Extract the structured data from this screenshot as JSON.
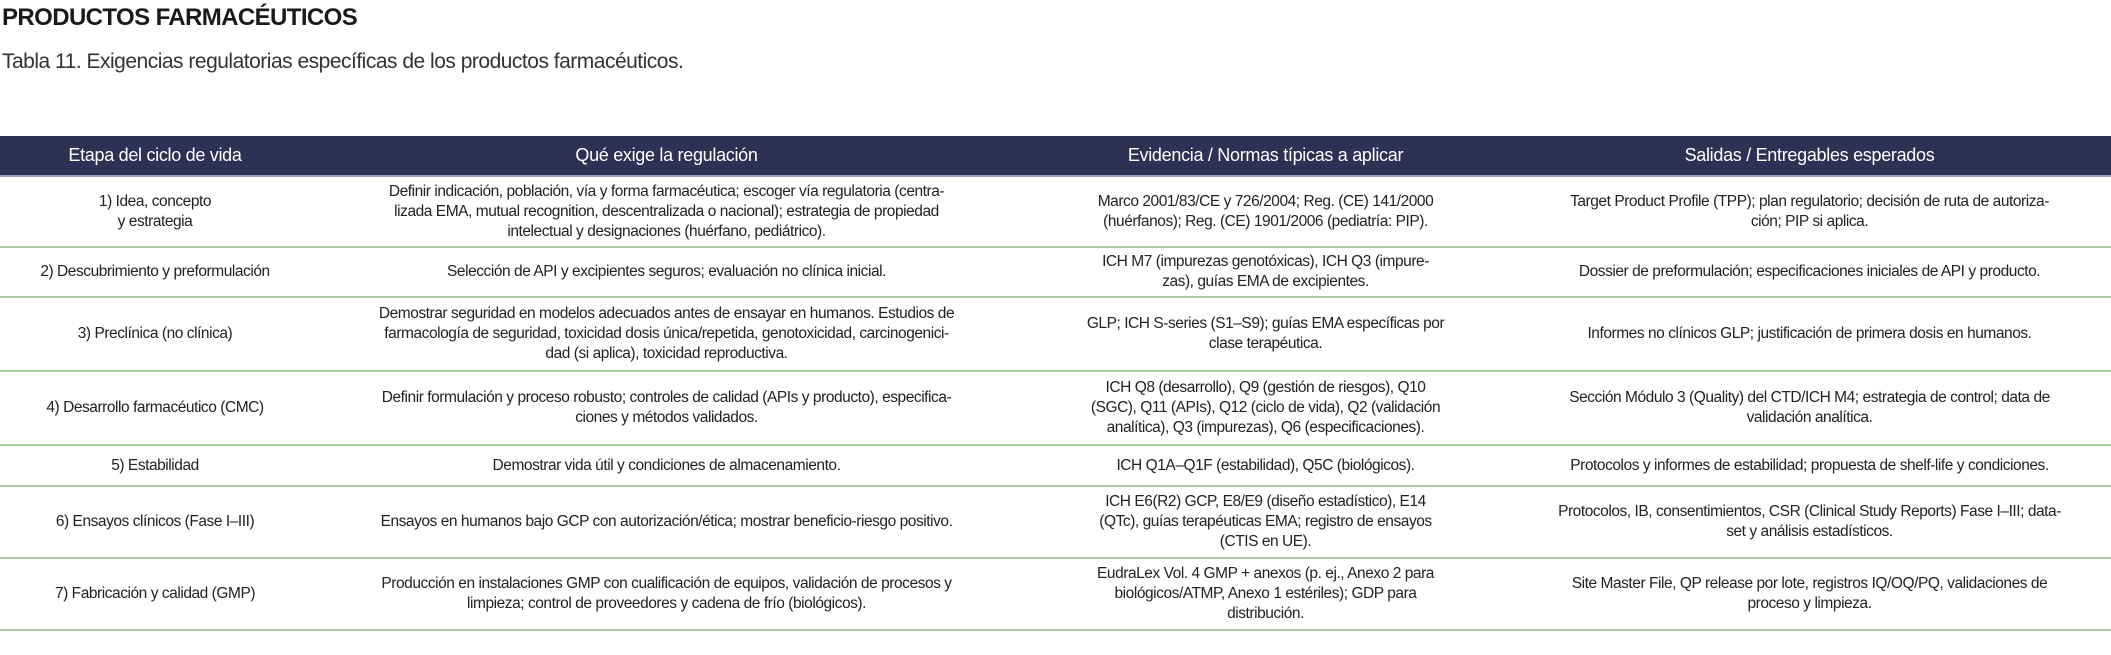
{
  "header": {
    "title": "PRODUCTOS FARMACÉUTICOS",
    "caption": "Tabla 11. Exigencias regulatorias específicas de los productos farmacéuticos."
  },
  "table": {
    "columns": [
      "Etapa del ciclo de vida",
      "Qué exige la regulación",
      "Evidencia / Normas típicas a aplicar",
      "Salidas / Entregables esperados"
    ],
    "rows": [
      [
        "1) Idea, concepto\ny estrategia",
        "Definir indicación, población, vía y forma farmacéutica; escoger vía regulatoria (centra-\nlizada EMA, mutual recognition, descentralizada o nacional); estrategia de propiedad\nintelectual y designaciones (huérfano, pediátrico).",
        "Marco 2001/83/CE y 726/2004; Reg. (CE) 141/2000\n(huérfanos); Reg. (CE) 1901/2006 (pediatría: PIP).",
        "Target Product Profile (TPP); plan regulatorio; decisión de ruta de autoriza-\nción; PIP si aplica."
      ],
      [
        "2) Descubrimiento y preformulación",
        "Selección de API y excipientes seguros; evaluación no clínica inicial.",
        "ICH M7 (impurezas genotóxicas), ICH Q3 (impure-\nzas), guías EMA de excipientes.",
        "Dossier de preformulación; especificaciones iniciales de API y producto."
      ],
      [
        "3) Preclínica (no clínica)",
        "Demostrar seguridad en modelos adecuados antes de ensayar en humanos. Estudios de\nfarmacología de seguridad, toxicidad dosis única/repetida, genotoxicidad, carcinogenici-\ndad (si aplica), toxicidad reproductiva.",
        "GLP; ICH S-series (S1–S9); guías EMA específicas por\nclase terapéutica.",
        "Informes no clínicos GLP; justificación de primera dosis en humanos."
      ],
      [
        "4) Desarrollo farmacéutico (CMC)",
        "Definir formulación y proceso robusto; controles de calidad (APIs y producto), especifica-\nciones y métodos validados.",
        "ICH Q8 (desarrollo), Q9 (gestión de riesgos), Q10\n(SGC), Q11 (APIs), Q12 (ciclo de vida), Q2 (validación\nanalítica), Q3 (impurezas), Q6 (especificaciones).",
        "Sección Módulo 3 (Quality) del CTD/ICH M4; estrategia de control; data de\nvalidación analítica."
      ],
      [
        "5) Estabilidad",
        "Demostrar vida útil y condiciones de almacenamiento.",
        "ICH Q1A–Q1F (estabilidad), Q5C (biológicos).",
        "Protocolos y informes de estabilidad; propuesta de shelf-life y condiciones."
      ],
      [
        "6) Ensayos clínicos (Fase I–III)",
        "Ensayos en humanos bajo GCP con autorización/ética; mostrar beneficio-riesgo positivo.",
        "ICH E6(R2) GCP, E8/E9 (diseño estadístico), E14\n(QTc), guías terapéuticas EMA; registro de ensayos\n(CTIS en UE).",
        "Protocolos, IB, consentimientos, CSR (Clinical Study Reports) Fase I–III; data-\nset y análisis estadísticos."
      ],
      [
        "7) Fabricación y calidad (GMP)",
        "Producción en instalaciones GMP con cualificación de equipos, validación de procesos y\nlimpieza; control de proveedores y cadena de frío (biológicos).",
        "EudraLex Vol. 4 GMP + anexos (p. ej., Anexo 2 para\nbiológicos/ATMP, Anexo 1 estériles); GDP para\ndistribución.",
        "Site Master File, QP release por lote, registros IQ/OQ/PQ, validaciones de\nproceso y limpieza."
      ]
    ]
  },
  "colors": {
    "header_bg": "#2d3153",
    "row_divider": "#a8cc9f"
  }
}
